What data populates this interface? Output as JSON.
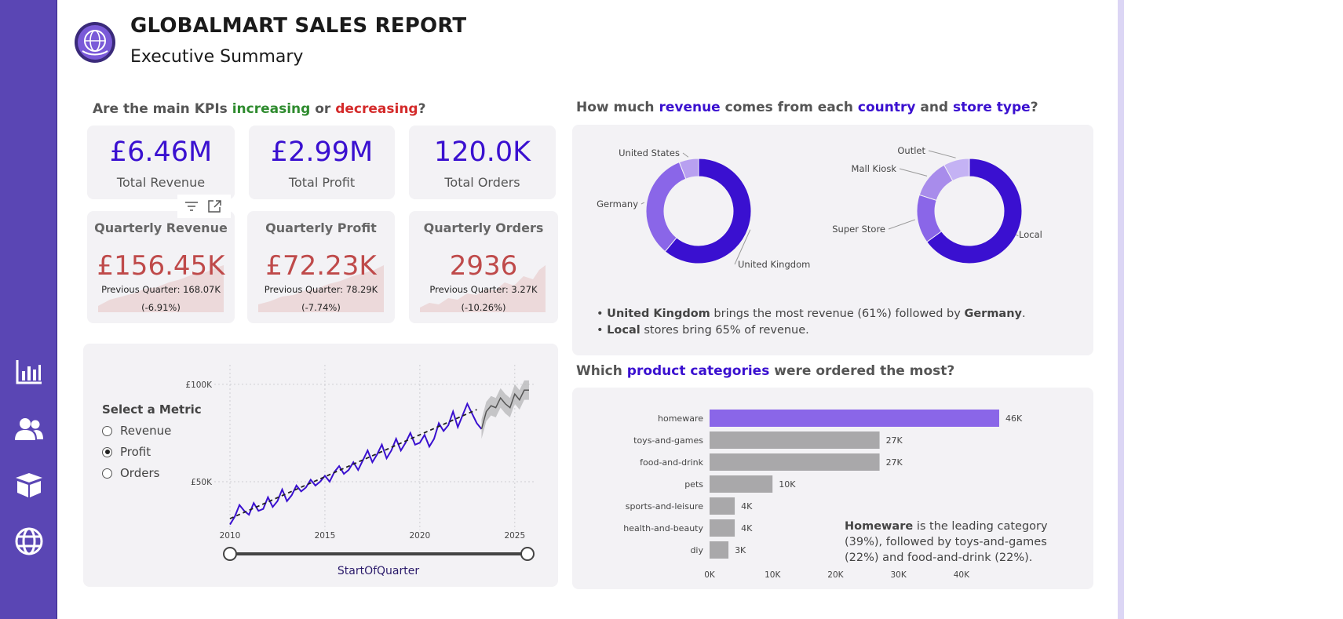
{
  "header": {
    "title": "GLOBALMART SALES REPORT",
    "subtitle": "Executive Summary"
  },
  "nav": {
    "items": [
      "chart-icon",
      "users-icon",
      "box-icon",
      "globe-icon"
    ]
  },
  "kpi_section": {
    "q_pre": "Are the main KPIs ",
    "q_up": "increasing",
    "q_mid": " or ",
    "q_down": "decreasing",
    "q_end": "?"
  },
  "kpis": [
    {
      "value": "£6.46M",
      "label": "Total Revenue"
    },
    {
      "value": "£2.99M",
      "label": "Total Profit"
    },
    {
      "value": "120.0K",
      "label": "Total Orders"
    }
  ],
  "quarterly": [
    {
      "title": "Quarterly Revenue",
      "value": "£156.45K",
      "previous": "Previous Quarter: 168.07K",
      "change": "(-6.91%)"
    },
    {
      "title": "Quarterly Profit",
      "value": "£72.23K",
      "previous": "Previous Quarter: 78.29K",
      "change": "(-7.74%)"
    },
    {
      "title": "Quarterly Orders",
      "value": "2936",
      "previous": "Previous Quarter: 3.27K",
      "change": "(-10.26%)"
    }
  ],
  "metric_selector": {
    "title": "Select a Metric",
    "options": [
      "Revenue",
      "Profit",
      "Orders"
    ],
    "selected": "Profit"
  },
  "revenue_section": {
    "q_pre": "How much ",
    "q_h1": "revenue",
    "q_mid1": " comes from each ",
    "q_h2": "country",
    "q_mid2": " and ",
    "q_h3": "store type",
    "q_end": "?",
    "bullet1_bold": "United Kingdom",
    "bullet1_rest": " brings the most revenue (61%) followed by ",
    "bullet1_bold2": "Germany",
    "bullet1_end": ".",
    "bullet2_bold": "Local",
    "bullet2_rest": " stores bring 65% of revenue."
  },
  "category_section": {
    "q_pre": "Which ",
    "q_h1": "product categories",
    "q_end": " were ordered the most?",
    "insight_bold": "Homeware",
    "insight_rest": " is the leading category (39%), followed by toys-and-games (22%) and food-and-drink (22%)."
  },
  "colors": {
    "nav": "#5a46b4",
    "accent": "#3a10d0",
    "negative": "#bf4a4a",
    "bar_highlight": "#8a66e8",
    "bar_default": "#a9a8aa"
  },
  "chart_data": [
    {
      "type": "line",
      "title": "",
      "xlabel": "StartOfQuarter",
      "ylabel": "",
      "x_ticks": [
        "2010",
        "2015",
        "2020",
        "2025"
      ],
      "y_ticks": [
        "£50K",
        "£100K"
      ],
      "ylim": [
        25000,
        110000
      ],
      "xlim": [
        2010,
        2026
      ],
      "series": [
        {
          "values_x": [
            2010.0,
            2010.25,
            2010.5,
            2010.75,
            2011.0,
            2011.25,
            2011.5,
            2011.75,
            2012.0,
            2012.25,
            2012.5,
            2012.75,
            2013.0,
            2013.25,
            2013.5,
            2013.75,
            2014.0,
            2014.25,
            2014.5,
            2014.75,
            2015.0,
            2015.25,
            2015.5,
            2015.75,
            2016.0,
            2016.25,
            2016.5,
            2016.75,
            2017.0,
            2017.25,
            2017.5,
            2017.75,
            2018.0,
            2018.25,
            2018.5,
            2018.75,
            2019.0,
            2019.25,
            2019.5,
            2019.75,
            2020.0,
            2020.25,
            2020.5,
            2020.75,
            2021.0,
            2021.25,
            2021.5,
            2021.75,
            2022.0,
            2022.25,
            2022.5,
            2022.75,
            2023.0,
            2023.25
          ],
          "values_y": [
            28000,
            32000,
            38000,
            35000,
            33000,
            39000,
            35000,
            36000,
            42000,
            37000,
            40000,
            46000,
            40000,
            43000,
            48000,
            45000,
            47000,
            51000,
            48000,
            50000,
            53000,
            50000,
            55000,
            58000,
            54000,
            56000,
            60000,
            56000,
            61000,
            66000,
            60000,
            64000,
            69000,
            62000,
            66000,
            72000,
            66000,
            70000,
            75000,
            69000,
            70000,
            74000,
            68000,
            72000,
            80000,
            76000,
            79000,
            86000,
            78000,
            84000,
            90000,
            85000,
            80000,
            77000
          ]
        },
        {
          "values_x": [
            2023.25,
            2023.5,
            2023.75,
            2024.0,
            2024.25,
            2024.5,
            2024.75,
            2025.0,
            2025.25,
            2025.5,
            2025.75
          ],
          "values_y": [
            77000,
            86000,
            89000,
            88000,
            93000,
            90000,
            88000,
            95000,
            92000,
            97000,
            97000
          ]
        }
      ],
      "trend": [
        [
          2010,
          31000
        ],
        [
          2023,
          87000
        ]
      ]
    },
    {
      "type": "pie",
      "title": "",
      "slices": [
        {
          "label": "United Kingdom",
          "value": 61
        },
        {
          "label": "Germany",
          "value": 33
        },
        {
          "label": "United States",
          "value": 6
        }
      ]
    },
    {
      "type": "pie",
      "title": "",
      "slices": [
        {
          "label": "Local",
          "value": 65
        },
        {
          "label": "Super Store",
          "value": 15
        },
        {
          "label": "Mall Kiosk",
          "value": 12
        },
        {
          "label": "Outlet",
          "value": 8
        }
      ]
    },
    {
      "type": "bar",
      "title": "",
      "categories": [
        "homeware",
        "toys-and-games",
        "food-and-drink",
        "pets",
        "sports-and-leisure",
        "health-and-beauty",
        "diy"
      ],
      "values": [
        46000,
        27000,
        27000,
        10000,
        4000,
        4000,
        3000
      ],
      "labels": [
        "46K",
        "27K",
        "27K",
        "10K",
        "4K",
        "4K",
        "3K"
      ],
      "x_ticks": [
        "0K",
        "10K",
        "20K",
        "30K",
        "40K"
      ],
      "xlim": [
        0,
        47000
      ]
    }
  ]
}
